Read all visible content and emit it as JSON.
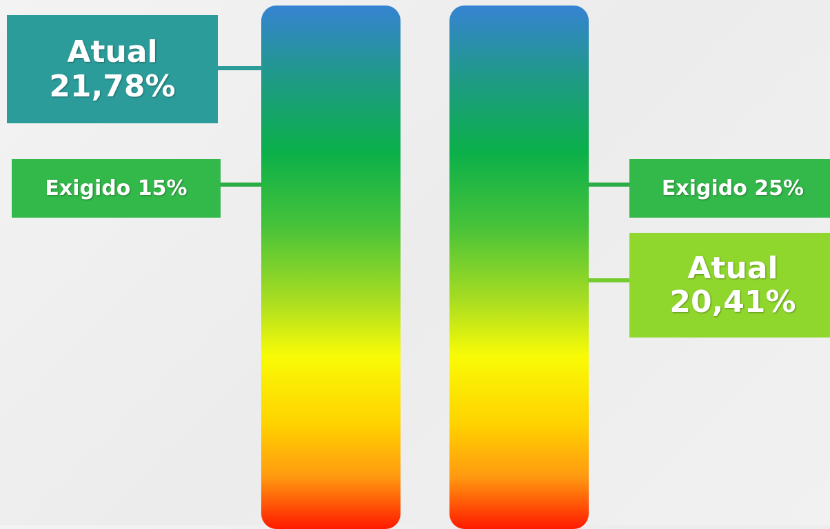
{
  "left_gauge": {
    "current": {
      "label": "Atual",
      "value": "21,78%"
    },
    "required": {
      "label": "Exigido 15%"
    }
  },
  "right_gauge": {
    "required": {
      "label": "Exigido 25%"
    },
    "current": {
      "label": "Atual",
      "value": "20,41%"
    }
  },
  "colors": {
    "gradient_top": "#3683d2",
    "gradient_green": "#0bb04a",
    "gradient_yellow": "#f9fb06",
    "gradient_bottom": "#ff1a00",
    "box_atual_left": "#2b9c9a",
    "box_exigido": "#33b84a",
    "box_atual_right": "#8fd72c"
  }
}
